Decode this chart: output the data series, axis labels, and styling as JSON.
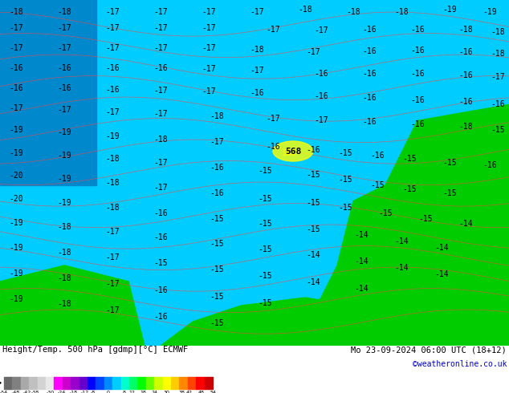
{
  "title_left": "Height/Temp. 500 hPa [gdmp][°C] ECMWF",
  "title_right": "Mo 23-09-2024 06:00 UTC (18+12)",
  "credit": "©weatheronline.co.uk",
  "colorbar_values": [
    -54,
    -48,
    -42,
    -38,
    -30,
    -24,
    -18,
    -12,
    -8,
    0,
    8,
    12,
    18,
    24,
    30,
    38,
    42,
    48,
    54
  ],
  "colorbar_colors": [
    "#404040",
    "#606060",
    "#808080",
    "#a0a0a0",
    "#c0c0c0",
    "#e0e0e0",
    "#ff00ff",
    "#cc00cc",
    "#9900cc",
    "#6600cc",
    "#0000ff",
    "#0055ff",
    "#00aaff",
    "#00ffff",
    "#00ffaa",
    "#00ff00",
    "#aaff00",
    "#ffff00",
    "#ffaa00",
    "#ff5500",
    "#ff0000",
    "#cc0000"
  ],
  "bg_color": "#00ccff",
  "map_bg": "#00ccff",
  "land_green": "#00cc00",
  "bottom_bar_color": "#000000",
  "bottom_bg": "#ffffff",
  "fig_width": 6.34,
  "fig_height": 4.9
}
